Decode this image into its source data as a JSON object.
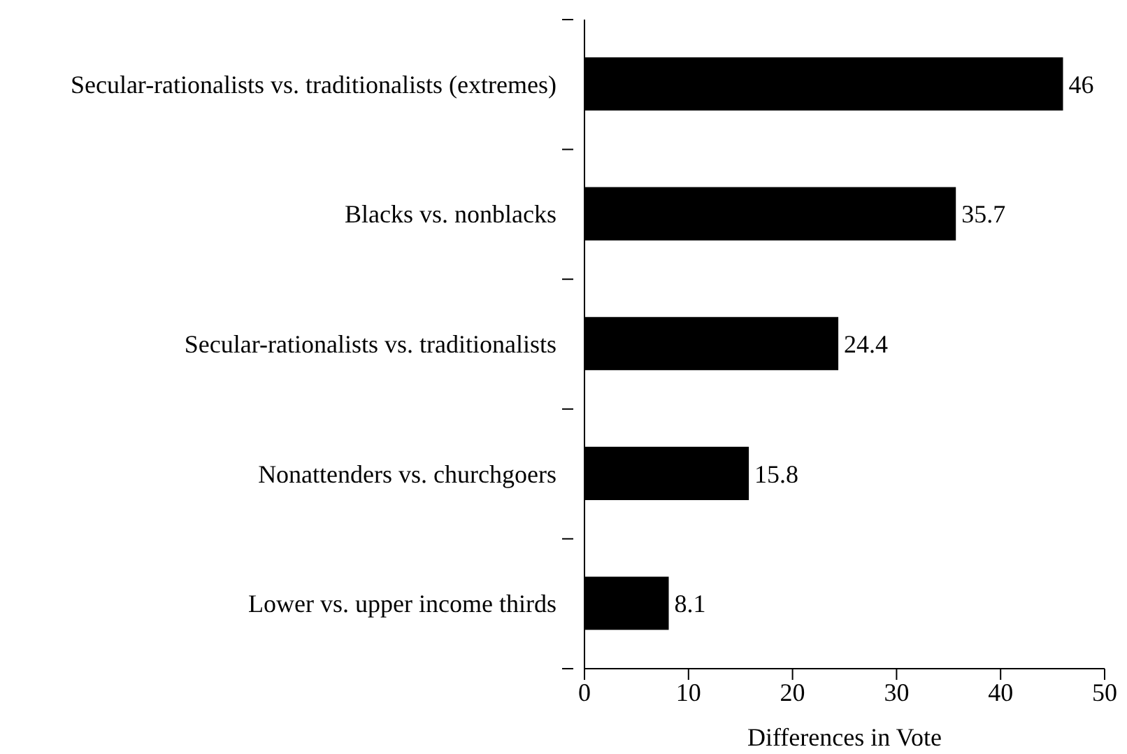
{
  "chart_data": {
    "type": "bar",
    "orientation": "horizontal",
    "categories": [
      "Secular-rationalists vs. traditionalists (extremes)",
      "Blacks vs. nonblacks",
      "Secular-rationalists vs. traditionalists",
      "Nonattenders vs. churchgoers",
      "Lower vs. upper income thirds"
    ],
    "values": [
      46,
      35.7,
      24.4,
      15.8,
      8.1
    ],
    "color": "#000000",
    "xlabel": "Differences in Vote",
    "xlim": [
      0,
      50
    ],
    "xticks": [
      0,
      10,
      20,
      30,
      40,
      50
    ],
    "data_labels": true,
    "grid": false,
    "legend": false
  }
}
